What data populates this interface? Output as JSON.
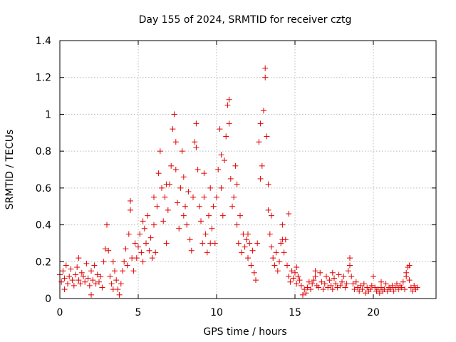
{
  "chart_data": {
    "type": "scatter",
    "title": "Day 155 of 2024, SRMTID for receiver cztg",
    "xlabel": "GPS time / hours",
    "ylabel": "SRMTID / TECUs",
    "xlim": [
      0,
      24
    ],
    "ylim": [
      0,
      1.4
    ],
    "x_ticks": [
      0,
      5,
      10,
      15,
      20
    ],
    "x_tick_labels": [
      "0",
      "5",
      "10",
      "15",
      "20"
    ],
    "y_ticks": [
      0,
      0.2,
      0.4,
      0.6,
      0.8,
      1.0,
      1.2,
      1.4
    ],
    "y_tick_labels": [
      "0",
      "0.2",
      "0.4",
      "0.6",
      "0.8",
      "1",
      "1.2",
      "1.4"
    ],
    "grid": true,
    "marker": "+",
    "marker_color": "#e00000",
    "series": [
      {
        "name": "SRMTID",
        "points": [
          [
            0.0,
            0.13
          ],
          [
            0.1,
            0.09
          ],
          [
            0.2,
            0.15
          ],
          [
            0.3,
            0.11
          ],
          [
            0.4,
            0.18
          ],
          [
            0.5,
            0.08
          ],
          [
            0.6,
            0.12
          ],
          [
            0.7,
            0.16
          ],
          [
            0.8,
            0.1
          ],
          [
            0.9,
            0.07
          ],
          [
            1.0,
            0.13
          ],
          [
            1.1,
            0.17
          ],
          [
            1.2,
            0.1
          ],
          [
            1.3,
            0.08
          ],
          [
            1.4,
            0.14
          ],
          [
            1.5,
            0.12
          ],
          [
            1.6,
            0.09
          ],
          [
            1.7,
            0.19
          ],
          [
            1.8,
            0.11
          ],
          [
            1.9,
            0.07
          ],
          [
            2.0,
            0.15
          ],
          [
            2.1,
            0.1
          ],
          [
            2.2,
            0.18
          ],
          [
            2.3,
            0.08
          ],
          [
            2.4,
            0.13
          ],
          [
            2.5,
            0.09
          ],
          [
            2.6,
            0.12
          ],
          [
            2.7,
            0.06
          ],
          [
            2.8,
            0.2
          ],
          [
            2.9,
            0.27
          ],
          [
            3.0,
            0.4
          ],
          [
            3.1,
            0.26
          ],
          [
            3.2,
            0.12
          ],
          [
            3.3,
            0.08
          ],
          [
            3.4,
            0.2
          ],
          [
            3.5,
            0.15
          ],
          [
            3.6,
            0.1
          ],
          [
            3.7,
            0.05
          ],
          [
            3.8,
            0.02
          ],
          [
            3.9,
            0.08
          ],
          [
            4.0,
            0.15
          ],
          [
            4.1,
            0.2
          ],
          [
            4.2,
            0.27
          ],
          [
            4.3,
            0.18
          ],
          [
            4.4,
            0.35
          ],
          [
            4.5,
            0.48
          ],
          [
            4.6,
            0.22
          ],
          [
            4.7,
            0.15
          ],
          [
            4.8,
            0.3
          ],
          [
            4.9,
            0.22
          ],
          [
            5.0,
            0.28
          ],
          [
            5.1,
            0.35
          ],
          [
            5.2,
            0.25
          ],
          [
            5.3,
            0.2
          ],
          [
            5.4,
            0.38
          ],
          [
            5.5,
            0.3
          ],
          [
            5.6,
            0.45
          ],
          [
            5.7,
            0.26
          ],
          [
            5.8,
            0.33
          ],
          [
            5.9,
            0.22
          ],
          [
            6.0,
            0.4
          ],
          [
            6.1,
            0.25
          ],
          [
            6.2,
            0.5
          ],
          [
            6.3,
            0.68
          ],
          [
            6.4,
            0.8
          ],
          [
            6.5,
            0.6
          ],
          [
            6.6,
            0.42
          ],
          [
            6.7,
            0.55
          ],
          [
            6.8,
            0.3
          ],
          [
            6.9,
            0.48
          ],
          [
            7.0,
            0.62
          ],
          [
            7.1,
            0.72
          ],
          [
            7.2,
            0.92
          ],
          [
            7.3,
            1.0
          ],
          [
            7.4,
            0.7
          ],
          [
            7.5,
            0.52
          ],
          [
            7.6,
            0.38
          ],
          [
            7.7,
            0.6
          ],
          [
            7.8,
            0.8
          ],
          [
            7.9,
            0.66
          ],
          [
            8.0,
            0.5
          ],
          [
            8.1,
            0.4
          ],
          [
            8.2,
            0.58
          ],
          [
            8.3,
            0.32
          ],
          [
            8.4,
            0.26
          ],
          [
            8.5,
            0.55
          ],
          [
            8.6,
            0.85
          ],
          [
            8.7,
            0.95
          ],
          [
            8.8,
            0.7
          ],
          [
            8.9,
            0.5
          ],
          [
            9.0,
            0.42
          ],
          [
            9.1,
            0.3
          ],
          [
            9.2,
            0.55
          ],
          [
            9.3,
            0.35
          ],
          [
            9.4,
            0.25
          ],
          [
            9.5,
            0.45
          ],
          [
            9.6,
            0.3
          ],
          [
            9.7,
            0.38
          ],
          [
            9.8,
            0.5
          ],
          [
            9.9,
            0.3
          ],
          [
            10.0,
            0.55
          ],
          [
            10.1,
            0.7
          ],
          [
            10.2,
            0.92
          ],
          [
            10.3,
            0.6
          ],
          [
            10.4,
            0.45
          ],
          [
            10.5,
            0.75
          ],
          [
            10.6,
            0.88
          ],
          [
            10.7,
            1.05
          ],
          [
            10.8,
            0.95
          ],
          [
            10.9,
            0.65
          ],
          [
            11.0,
            0.5
          ],
          [
            11.1,
            0.55
          ],
          [
            11.2,
            0.72
          ],
          [
            11.3,
            0.4
          ],
          [
            11.4,
            0.3
          ],
          [
            11.5,
            0.45
          ],
          [
            11.6,
            0.25
          ],
          [
            11.7,
            0.35
          ],
          [
            11.8,
            0.28
          ],
          [
            11.9,
            0.32
          ],
          [
            12.0,
            0.22
          ],
          [
            12.1,
            0.3
          ],
          [
            12.2,
            0.18
          ],
          [
            12.3,
            0.26
          ],
          [
            12.4,
            0.14
          ],
          [
            12.5,
            0.1
          ],
          [
            12.6,
            0.3
          ],
          [
            12.7,
            0.85
          ],
          [
            12.8,
            0.95
          ],
          [
            12.9,
            0.72
          ],
          [
            13.0,
            1.02
          ],
          [
            13.1,
            1.2
          ],
          [
            13.2,
            0.88
          ],
          [
            13.3,
            0.48
          ],
          [
            13.4,
            0.35
          ],
          [
            13.5,
            0.28
          ],
          [
            13.6,
            0.22
          ],
          [
            13.7,
            0.18
          ],
          [
            13.8,
            0.25
          ],
          [
            13.9,
            0.15
          ],
          [
            14.0,
            0.2
          ],
          [
            14.1,
            0.3
          ],
          [
            14.2,
            0.4
          ],
          [
            14.3,
            0.25
          ],
          [
            14.4,
            0.32
          ],
          [
            14.5,
            0.18
          ],
          [
            14.6,
            0.12
          ],
          [
            14.7,
            0.09
          ],
          [
            14.8,
            0.15
          ],
          [
            14.9,
            0.11
          ],
          [
            15.0,
            0.14
          ],
          [
            15.1,
            0.08
          ],
          [
            15.2,
            0.12
          ],
          [
            15.3,
            0.1
          ],
          [
            15.4,
            0.07
          ],
          [
            15.5,
            0.02
          ],
          [
            15.6,
            0.05
          ],
          [
            15.7,
            0.03
          ],
          [
            15.8,
            0.06
          ],
          [
            15.9,
            0.09
          ],
          [
            16.0,
            0.05
          ],
          [
            16.1,
            0.08
          ],
          [
            16.2,
            0.1
          ],
          [
            16.3,
            0.12
          ],
          [
            16.4,
            0.07
          ],
          [
            16.5,
            0.06
          ],
          [
            16.6,
            0.14
          ],
          [
            16.7,
            0.09
          ],
          [
            16.8,
            0.05
          ],
          [
            16.9,
            0.08
          ],
          [
            17.0,
            0.12
          ],
          [
            17.1,
            0.06
          ],
          [
            17.2,
            0.1
          ],
          [
            17.3,
            0.07
          ],
          [
            17.4,
            0.05
          ],
          [
            17.5,
            0.11
          ],
          [
            17.6,
            0.08
          ],
          [
            17.7,
            0.06
          ],
          [
            17.8,
            0.13
          ],
          [
            17.9,
            0.07
          ],
          [
            18.0,
            0.09
          ],
          [
            18.1,
            0.12
          ],
          [
            18.2,
            0.06
          ],
          [
            18.3,
            0.08
          ],
          [
            18.4,
            0.15
          ],
          [
            18.5,
            0.22
          ],
          [
            18.6,
            0.12
          ],
          [
            18.7,
            0.08
          ],
          [
            18.8,
            0.05
          ],
          [
            18.9,
            0.09
          ],
          [
            19.0,
            0.06
          ],
          [
            19.1,
            0.04
          ],
          [
            19.2,
            0.07
          ],
          [
            19.3,
            0.05
          ],
          [
            19.4,
            0.08
          ],
          [
            19.5,
            0.03
          ],
          [
            19.6,
            0.06
          ],
          [
            19.7,
            0.04
          ],
          [
            19.8,
            0.05
          ],
          [
            19.9,
            0.07
          ],
          [
            20.0,
            0.12
          ],
          [
            20.1,
            0.06
          ],
          [
            20.2,
            0.04
          ],
          [
            20.3,
            0.05
          ],
          [
            20.4,
            0.03
          ],
          [
            20.5,
            0.06
          ],
          [
            20.6,
            0.04
          ],
          [
            20.7,
            0.05
          ],
          [
            20.8,
            0.08
          ],
          [
            20.9,
            0.04
          ],
          [
            21.0,
            0.06
          ],
          [
            21.1,
            0.05
          ],
          [
            21.2,
            0.07
          ],
          [
            21.3,
            0.04
          ],
          [
            21.4,
            0.06
          ],
          [
            21.5,
            0.08
          ],
          [
            21.6,
            0.05
          ],
          [
            21.7,
            0.07
          ],
          [
            21.8,
            0.06
          ],
          [
            21.9,
            0.09
          ],
          [
            22.0,
            0.05
          ],
          [
            22.1,
            0.12
          ],
          [
            22.2,
            0.17
          ],
          [
            22.3,
            0.1
          ],
          [
            22.4,
            0.06
          ],
          [
            22.5,
            0.04
          ],
          [
            22.6,
            0.07
          ],
          [
            22.7,
            0.05
          ],
          [
            22.8,
            0.06
          ],
          [
            0.3,
            0.05
          ],
          [
            1.2,
            0.22
          ],
          [
            2.0,
            0.02
          ],
          [
            3.4,
            0.05
          ],
          [
            4.5,
            0.53
          ],
          [
            5.3,
            0.42
          ],
          [
            6.0,
            0.55
          ],
          [
            6.8,
            0.62
          ],
          [
            7.4,
            0.85
          ],
          [
            7.9,
            0.45
          ],
          [
            8.7,
            0.82
          ],
          [
            9.2,
            0.68
          ],
          [
            9.6,
            0.6
          ],
          [
            10.3,
            0.78
          ],
          [
            10.8,
            1.08
          ],
          [
            11.3,
            0.62
          ],
          [
            12.0,
            0.35
          ],
          [
            12.8,
            0.65
          ],
          [
            13.1,
            1.25
          ],
          [
            13.3,
            0.62
          ],
          [
            13.5,
            0.45
          ],
          [
            14.2,
            0.32
          ],
          [
            14.6,
            0.46
          ],
          [
            15.1,
            0.17
          ],
          [
            16.3,
            0.15
          ],
          [
            17.4,
            0.14
          ],
          [
            18.5,
            0.18
          ],
          [
            20.5,
            0.09
          ],
          [
            22.1,
            0.14
          ],
          [
            22.3,
            0.18
          ]
        ]
      }
    ]
  }
}
